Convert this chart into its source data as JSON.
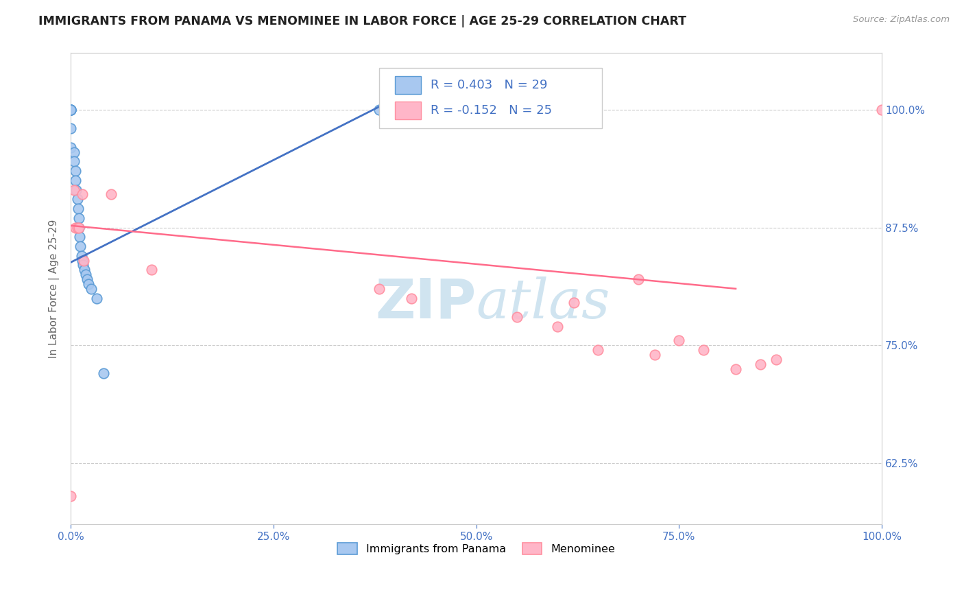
{
  "title": "IMMIGRANTS FROM PANAMA VS MENOMINEE IN LABOR FORCE | AGE 25-29 CORRELATION CHART",
  "source_text": "Source: ZipAtlas.com",
  "ylabel": "In Labor Force | Age 25-29",
  "xlim": [
    0.0,
    1.0
  ],
  "ylim": [
    0.56,
    1.06
  ],
  "xticks": [
    0.0,
    0.25,
    0.5,
    0.75,
    1.0
  ],
  "xticklabels": [
    "0.0%",
    "25.0%",
    "50.0%",
    "75.0%",
    "100.0%"
  ],
  "ytick_values": [
    0.625,
    0.75,
    0.875,
    1.0
  ],
  "yticklabels_right": [
    "62.5%",
    "75.0%",
    "87.5%",
    "100.0%"
  ],
  "blue_color": "#A8C8F0",
  "pink_color": "#FFB6C8",
  "blue_edge_color": "#5B9BD5",
  "pink_edge_color": "#FF8FA0",
  "blue_line_color": "#4472C4",
  "pink_line_color": "#FF6B8A",
  "title_color": "#222222",
  "axis_label_color": "#666666",
  "tick_label_color": "#4472C4",
  "watermark_color": "#D0E4F0",
  "grid_color": "#CCCCCC",
  "panama_x": [
    0.0,
    0.0,
    0.0,
    0.0,
    0.0,
    0.0,
    0.0,
    0.004,
    0.004,
    0.006,
    0.006,
    0.007,
    0.008,
    0.009,
    0.01,
    0.01,
    0.011,
    0.012,
    0.013,
    0.014,
    0.015,
    0.017,
    0.018,
    0.02,
    0.022,
    0.025,
    0.032,
    0.04,
    0.38
  ],
  "panama_y": [
    1.0,
    1.0,
    1.0,
    1.0,
    1.0,
    0.98,
    0.96,
    0.955,
    0.945,
    0.935,
    0.925,
    0.915,
    0.905,
    0.895,
    0.885,
    0.875,
    0.865,
    0.855,
    0.845,
    0.84,
    0.835,
    0.83,
    0.825,
    0.82,
    0.815,
    0.81,
    0.8,
    0.72,
    1.0
  ],
  "menominee_x": [
    0.0,
    0.004,
    0.006,
    0.008,
    0.01,
    0.014,
    0.016,
    0.05,
    0.1,
    0.38,
    0.42,
    0.55,
    0.6,
    0.62,
    0.65,
    0.7,
    0.72,
    0.75,
    0.78,
    0.82,
    0.85,
    0.87,
    1.0
  ],
  "menominee_y": [
    0.59,
    0.915,
    0.875,
    0.875,
    0.875,
    0.91,
    0.84,
    0.91,
    0.83,
    0.81,
    0.8,
    0.78,
    0.77,
    0.795,
    0.745,
    0.82,
    0.74,
    0.755,
    0.745,
    0.725,
    0.73,
    0.735,
    1.0
  ],
  "pink_line_x0": 0.0,
  "pink_line_y0": 0.877,
  "pink_line_x1": 0.82,
  "pink_line_y1": 0.81,
  "blue_line_x0": 0.0,
  "blue_line_y0": 0.838,
  "blue_line_x1": 0.38,
  "blue_line_y1": 1.003
}
